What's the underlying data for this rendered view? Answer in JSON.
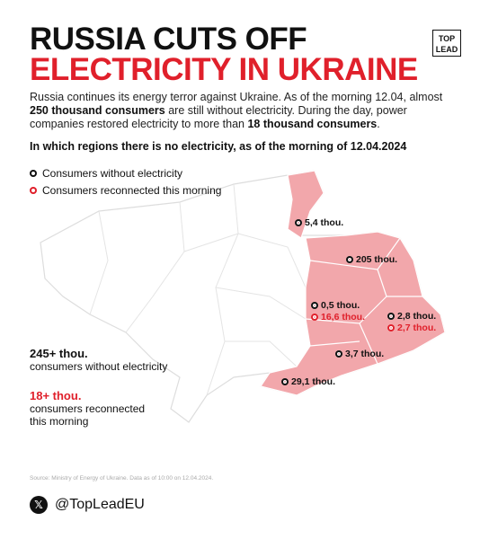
{
  "header": {
    "title_line1": "RUSSIA CUTS OFF",
    "title_line2": "ELECTRICITY IN UKRAINE",
    "logo_line1": "TOP",
    "logo_line2": "LEAD"
  },
  "intro": {
    "part1": "Russia continues its energy terror against Ukraine. As of the morning 12.04, almost ",
    "bold1": "250 thousand consumers",
    "part2": " are still without electricity. During the day, power companies restored electricity to more than ",
    "bold2": "18 thousand consumers",
    "part3": "."
  },
  "subtitle": "In which regions there is no electricity, as of the morning of 12.04.2024",
  "legend": [
    "Consumers without electricity",
    "Consumers reconnected this morning"
  ],
  "map_labels": {
    "without": [
      "5,4 thou.",
      "205 thou.",
      "0,5 thou.",
      "2,8 thou.",
      "3,7 thou.",
      "29,1 thou."
    ],
    "reconnected": [
      "16,6 thou.",
      "2,7 thou."
    ]
  },
  "summary": {
    "without_value": "245+ thou.",
    "without_text": "consumers without electricity",
    "reconnected_value": "18+ thou.",
    "reconnected_text": "consumers reconnected this morning"
  },
  "source": "Source: Ministry of Energy of Ukraine. Data as of 10:00 on 12.04.2024.",
  "handle": "@TopLeadEU"
}
